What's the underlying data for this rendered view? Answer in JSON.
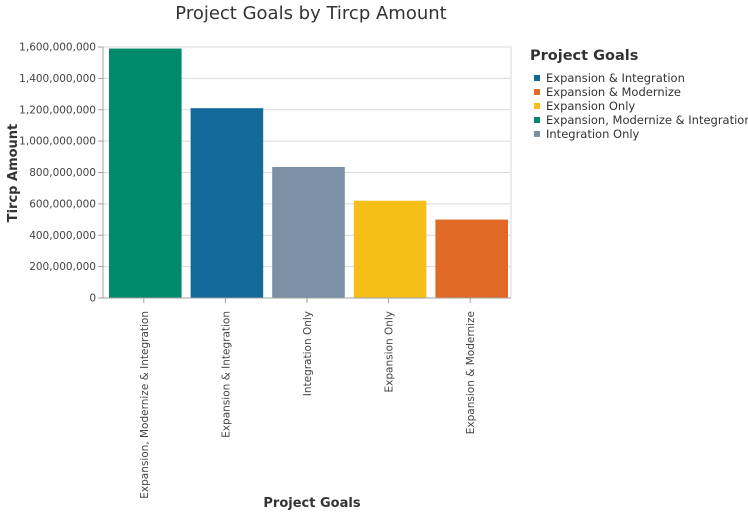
{
  "chart_data": {
    "type": "bar",
    "title": "Project Goals by Tircp Amount",
    "xlabel": "Project Goals",
    "ylabel": "Tircp Amount",
    "ylim": [
      0,
      1600000000
    ],
    "yticks": [
      0,
      200000000,
      400000000,
      600000000,
      800000000,
      1000000000,
      1200000000,
      1400000000,
      1600000000
    ],
    "ytick_labels": [
      "0",
      "200,000,000",
      "400,000,000",
      "600,000,000",
      "800,000,000",
      "1,000,000,000",
      "1,200,000,000",
      "1,400,000,000",
      "1,600,000,000"
    ],
    "grid": true,
    "legend_position": "right",
    "categories": [
      "Expansion, Modernize & Integration",
      "Expansion & Integration",
      "Integration Only",
      "Expansion Only",
      "Expansion & Modernize"
    ],
    "values": [
      1590000000,
      1210000000,
      835000000,
      620000000,
      500000000
    ],
    "bar_colors": [
      "#008a6b",
      "#136a9a",
      "#7a90a4",
      "#f5bf18",
      "#e26a27"
    ],
    "legend": {
      "title": "Project Goals",
      "items": [
        {
          "label": "Expansion & Integration",
          "color": "#136a9a"
        },
        {
          "label": "Expansion & Modernize",
          "color": "#e26a27"
        },
        {
          "label": "Expansion Only",
          "color": "#f5bf18"
        },
        {
          "label": "Expansion, Modernize & Integration",
          "color": "#008a6b"
        },
        {
          "label": "Integration Only",
          "color": "#7a90a4"
        }
      ]
    }
  }
}
